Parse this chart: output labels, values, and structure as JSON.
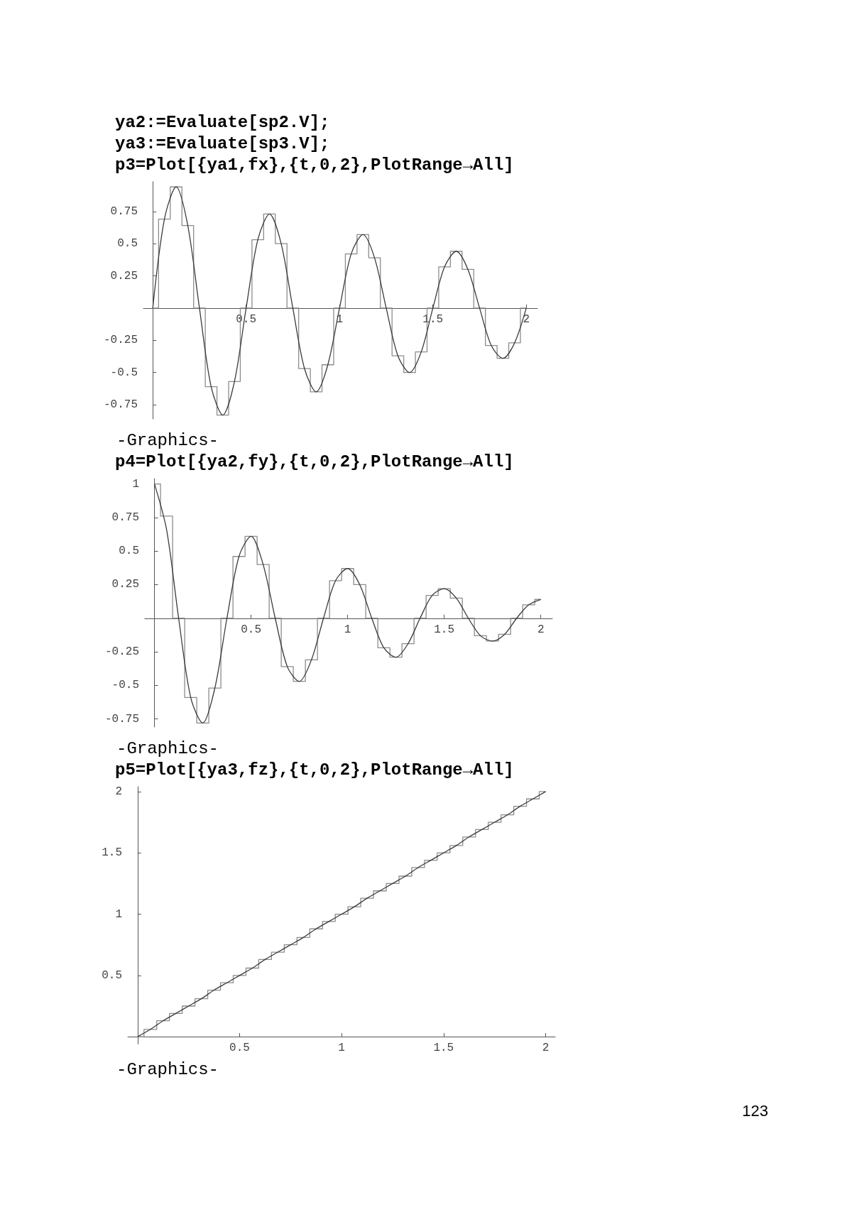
{
  "chart_data": [
    {
      "type": "line",
      "title": "ya2:=Evaluate[sp2.V];\nya3:=Evaluate[sp3.V];\np3=Plot[{ya1,fx},{t,0,2},PlotRange→All]",
      "marker": "none",
      "x": [
        0,
        0.0625,
        0.125,
        0.1875,
        0.25,
        0.3125,
        0.375,
        0.4375,
        0.5,
        0.5625,
        0.625,
        0.6875,
        0.75,
        0.8125,
        0.875,
        0.9375,
        1,
        1.0625,
        1.125,
        1.1875,
        1.25,
        1.3125,
        1.375,
        1.4375,
        1.5,
        1.5625,
        1.625,
        1.6875,
        1.75,
        1.8125,
        1.875,
        1.9375,
        2
      ],
      "series": [
        {
          "type": "step",
          "color": "#8c8c8c",
          "values": [
            0,
            0.69,
            0.94,
            0.64,
            0,
            -0.61,
            -0.83,
            -0.57,
            0,
            0.53,
            0.73,
            0.5,
            0,
            -0.47,
            -0.65,
            -0.44,
            0,
            0.42,
            0.57,
            0.39,
            0,
            -0.37,
            -0.5,
            -0.34,
            0,
            0.32,
            0.44,
            0.3,
            0,
            -0.29,
            -0.39,
            -0.27,
            0
          ]
        },
        {
          "type": "line",
          "color": "#3a3a3a",
          "values": [
            0,
            0.69,
            0.94,
            0.64,
            0,
            -0.61,
            -0.83,
            -0.57,
            0,
            0.53,
            0.73,
            0.5,
            0,
            -0.47,
            -0.65,
            -0.44,
            0,
            0.42,
            0.57,
            0.39,
            0,
            -0.37,
            -0.5,
            -0.34,
            0,
            0.32,
            0.44,
            0.3,
            0,
            -0.29,
            -0.39,
            -0.27,
            0
          ]
        }
      ],
      "xlim": [
        -0.05,
        2.06
      ],
      "ylim": [
        -0.86,
        0.98
      ],
      "xticks": [
        0.5,
        1,
        1.5,
        2
      ],
      "yticks": [
        -0.75,
        -0.5,
        -0.25,
        0.25,
        0.5,
        0.75
      ],
      "annotations": [
        "-Graphics-"
      ]
    },
    {
      "type": "line",
      "title": "p4=Plot[{ya2,fy},{t,0,2},PlotRange→All]",
      "marker": "none",
      "x": [
        0,
        0.0625,
        0.125,
        0.1875,
        0.25,
        0.3125,
        0.375,
        0.4375,
        0.5,
        0.5625,
        0.625,
        0.6875,
        0.75,
        0.8125,
        0.875,
        0.9375,
        1,
        1.0625,
        1.125,
        1.1875,
        1.25,
        1.3125,
        1.375,
        1.4375,
        1.5,
        1.5625,
        1.625,
        1.6875,
        1.75,
        1.8125,
        1.875,
        1.9375,
        2
      ],
      "series": [
        {
          "type": "step",
          "color": "#8c8c8c",
          "values": [
            1,
            0.76,
            0,
            -0.59,
            -0.78,
            -0.52,
            0,
            0.46,
            0.61,
            0.4,
            0,
            -0.36,
            -0.47,
            -0.31,
            0,
            0.28,
            0.37,
            0.25,
            0,
            -0.22,
            -0.29,
            -0.19,
            0,
            0.17,
            0.22,
            0.15,
            0,
            -0.13,
            -0.17,
            -0.12,
            0,
            0.1,
            0.14
          ]
        },
        {
          "type": "line",
          "color": "#3a3a3a",
          "values": [
            1,
            0.66,
            0,
            -0.59,
            -0.78,
            -0.52,
            0,
            0.46,
            0.61,
            0.4,
            0,
            -0.36,
            -0.47,
            -0.31,
            0,
            0.28,
            0.37,
            0.25,
            0,
            -0.22,
            -0.29,
            -0.19,
            0,
            0.17,
            0.22,
            0.15,
            0,
            -0.13,
            -0.17,
            -0.12,
            0,
            0.1,
            0.14
          ]
        }
      ],
      "xlim": [
        -0.05,
        2.06
      ],
      "ylim": [
        -0.81,
        1.04
      ],
      "xticks": [
        0.5,
        1,
        1.5,
        2
      ],
      "yticks": [
        -0.75,
        -0.5,
        -0.25,
        0.25,
        0.5,
        0.75,
        1
      ],
      "annotations": [
        "-Graphics-"
      ]
    },
    {
      "type": "line",
      "title": "p5=Plot[{ya3,fz},{t,0,2},PlotRange→All]",
      "marker": "none",
      "x": [
        0,
        0.0625,
        0.125,
        0.1875,
        0.25,
        0.3125,
        0.375,
        0.4375,
        0.5,
        0.5625,
        0.625,
        0.6875,
        0.75,
        0.8125,
        0.875,
        0.9375,
        1,
        1.0625,
        1.125,
        1.1875,
        1.25,
        1.3125,
        1.375,
        1.4375,
        1.5,
        1.5625,
        1.625,
        1.6875,
        1.75,
        1.8125,
        1.875,
        1.9375,
        2
      ],
      "series": [
        {
          "type": "step",
          "color": "#8c8c8c",
          "values": [
            0,
            0.06,
            0.13,
            0.19,
            0.25,
            0.31,
            0.38,
            0.44,
            0.5,
            0.56,
            0.63,
            0.69,
            0.75,
            0.81,
            0.88,
            0.94,
            1,
            1.06,
            1.13,
            1.19,
            1.25,
            1.31,
            1.38,
            1.44,
            1.5,
            1.56,
            1.63,
            1.69,
            1.75,
            1.81,
            1.88,
            1.94,
            2
          ]
        },
        {
          "type": "line",
          "color": "#3a3a3a",
          "values": [
            0,
            0.06,
            0.13,
            0.19,
            0.25,
            0.31,
            0.38,
            0.44,
            0.5,
            0.56,
            0.63,
            0.69,
            0.75,
            0.81,
            0.88,
            0.94,
            1,
            1.06,
            1.13,
            1.19,
            1.25,
            1.31,
            1.38,
            1.44,
            1.5,
            1.56,
            1.63,
            1.69,
            1.75,
            1.81,
            1.88,
            1.94,
            2
          ]
        }
      ],
      "xlim": [
        -0.048,
        2.047
      ],
      "ylim": [
        -0.06,
        2.04
      ],
      "xticks": [
        0.5,
        1,
        1.5,
        2
      ],
      "yticks": [
        0.5,
        1,
        1.5,
        2
      ],
      "annotations": [
        "-Graphics-",
        "123"
      ]
    }
  ]
}
